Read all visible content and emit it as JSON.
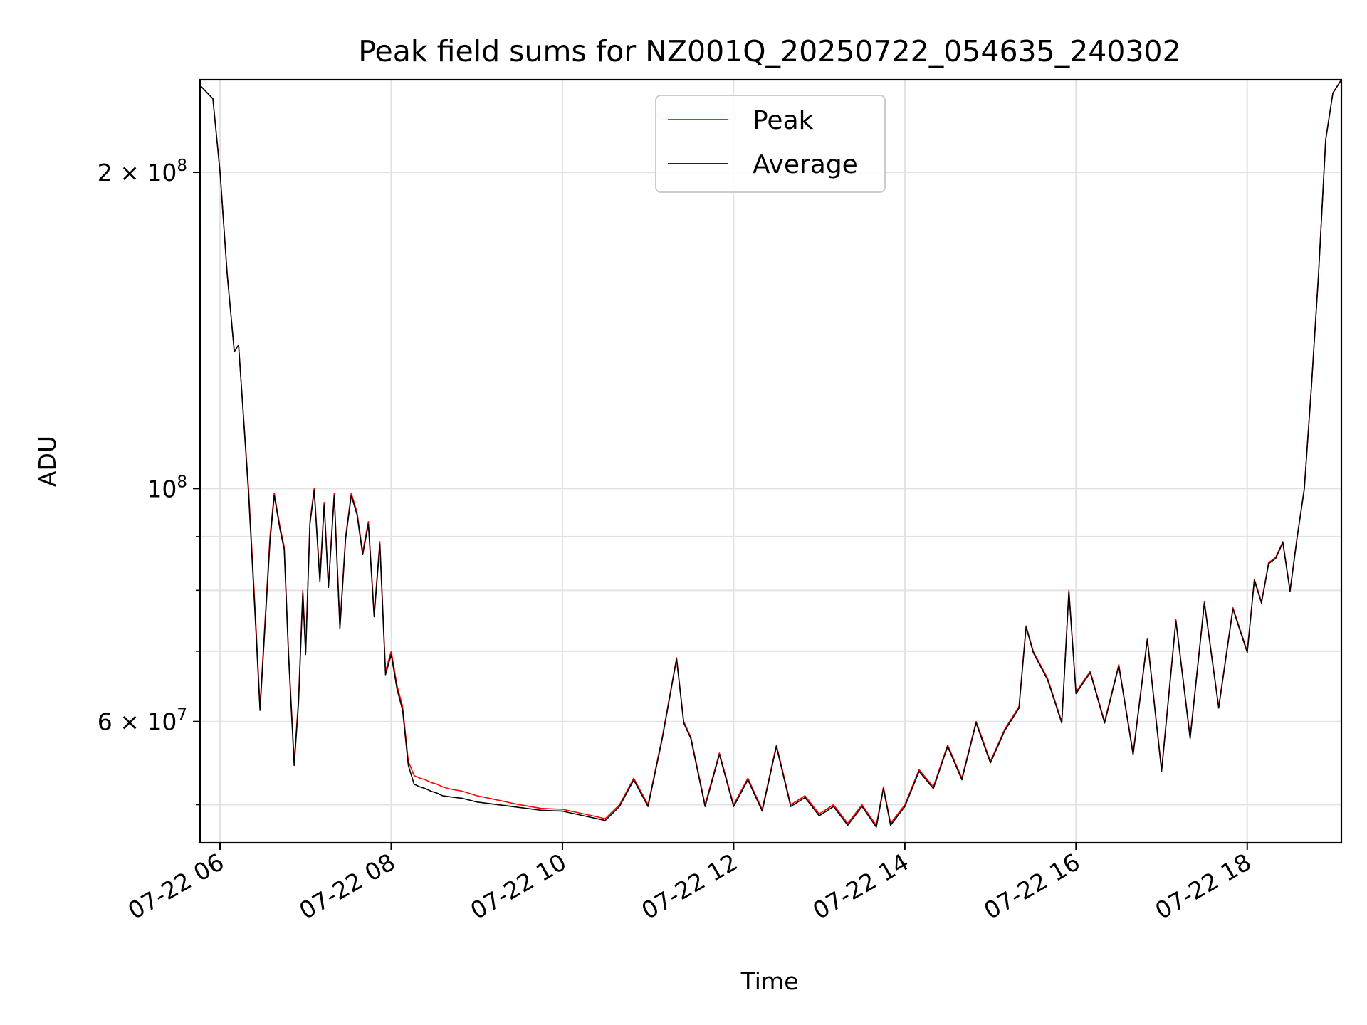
{
  "chart_data": {
    "type": "line",
    "title": "Peak field sums for NZ001Q_20250722_054635_240302",
    "xlabel": "Time",
    "ylabel": "ADU",
    "y_scale": "log",
    "ylim": [
      46000000,
      245000000
    ],
    "xlim": [
      "2025-07-22 05:46",
      "2025-07-22 19:06"
    ],
    "x_tick_labels": [
      "07-22 06",
      "07-22 08",
      "07-22 10",
      "07-22 12",
      "07-22 14",
      "07-22 16",
      "07-22 18"
    ],
    "x_ticks": [
      "2025-07-22 06:00",
      "2025-07-22 08:00",
      "2025-07-22 10:00",
      "2025-07-22 12:00",
      "2025-07-22 14:00",
      "2025-07-22 16:00",
      "2025-07-22 18:00"
    ],
    "y_tick_labels": [
      {
        "value": 200000000,
        "base": "2 × 10",
        "exp": "8"
      },
      {
        "value": 100000000,
        "base": "10",
        "exp": "8"
      },
      {
        "value": 60000000,
        "base": "6 × 10",
        "exp": "7"
      }
    ],
    "y_minor_ticks": [
      50000000,
      70000000,
      80000000,
      90000000
    ],
    "grid": true,
    "legend_position": "top-center",
    "series": [
      {
        "name": "Peak",
        "color": "#ff0000",
        "x": [
          "05:46",
          "05:55",
          "06:00",
          "06:05",
          "06:10",
          "06:13",
          "06:15",
          "06:20",
          "06:25",
          "06:28",
          "06:35",
          "06:38",
          "06:42",
          "06:45",
          "06:48",
          "06:52",
          "06:55",
          "06:58",
          "07:00",
          "07:03",
          "07:06",
          "07:10",
          "07:13",
          "07:16",
          "07:20",
          "07:24",
          "07:28",
          "07:32",
          "07:36",
          "07:40",
          "07:44",
          "07:48",
          "07:52",
          "07:56",
          "08:00",
          "08:04",
          "08:08",
          "08:12",
          "08:16",
          "08:20",
          "08:24",
          "08:28",
          "08:32",
          "08:36",
          "08:40",
          "08:50",
          "09:00",
          "09:15",
          "09:30",
          "09:45",
          "10:00",
          "10:15",
          "10:30",
          "10:40",
          "10:50",
          "11:00",
          "11:10",
          "11:20",
          "11:25",
          "11:30",
          "11:40",
          "11:50",
          "12:00",
          "12:10",
          "12:20",
          "12:30",
          "12:40",
          "12:50",
          "13:00",
          "13:10",
          "13:20",
          "13:30",
          "13:40",
          "13:45",
          "13:50",
          "14:00",
          "14:10",
          "14:20",
          "14:30",
          "14:40",
          "14:50",
          "15:00",
          "15:10",
          "15:20",
          "15:25",
          "15:30",
          "15:40",
          "15:50",
          "15:55",
          "16:00",
          "16:10",
          "16:20",
          "16:30",
          "16:40",
          "16:50",
          "17:00",
          "17:10",
          "17:20",
          "17:30",
          "17:40",
          "17:50",
          "18:00",
          "18:05",
          "18:10",
          "18:15",
          "18:20",
          "18:25",
          "18:30",
          "18:35",
          "18:40",
          "18:45",
          "18:50",
          "18:55",
          "19:00",
          "19:06"
        ],
        "y": [
          242000000,
          235000000,
          200000000,
          160000000,
          135000000,
          137000000,
          125000000,
          100000000,
          75000000,
          62000000,
          90000000,
          99000000,
          92000000,
          88000000,
          70000000,
          55000000,
          63000000,
          80000000,
          70000000,
          93000000,
          100000000,
          82000000,
          97000000,
          81000000,
          99000000,
          74000000,
          90000000,
          99000000,
          95000000,
          87000000,
          93000000,
          76000000,
          89000000,
          67000000,
          70000000,
          65000000,
          62000000,
          55000000,
          53300000,
          53000000,
          52800000,
          52500000,
          52300000,
          52000000,
          51800000,
          51500000,
          51000000,
          50500000,
          50000000,
          49600000,
          49500000,
          49000000,
          48500000,
          50000000,
          53000000,
          50000000,
          58000000,
          69000000,
          60000000,
          58000000,
          50000000,
          56000000,
          50000000,
          53000000,
          49500000,
          57000000,
          50000000,
          51000000,
          49000000,
          50000000,
          48000000,
          50000000,
          47800000,
          52000000,
          48000000,
          50000000,
          54000000,
          52000000,
          57000000,
          53000000,
          60000000,
          55000000,
          59000000,
          62000000,
          74000000,
          70000000,
          66000000,
          60000000,
          80000000,
          64000000,
          67000000,
          60000000,
          68000000,
          56000000,
          72000000,
          54000000,
          75000000,
          58000000,
          78000000,
          62000000,
          77000000,
          70000000,
          82000000,
          78000000,
          85000000,
          86000000,
          89000000,
          80000000,
          90000000,
          100000000,
          125000000,
          160000000,
          215000000,
          238000000,
          245000000
        ]
      },
      {
        "name": "Average",
        "color": "#000000",
        "x": [
          "05:46",
          "05:55",
          "06:00",
          "06:05",
          "06:10",
          "06:13",
          "06:15",
          "06:20",
          "06:25",
          "06:28",
          "06:35",
          "06:38",
          "06:42",
          "06:45",
          "06:48",
          "06:52",
          "06:55",
          "06:58",
          "07:00",
          "07:03",
          "07:06",
          "07:10",
          "07:13",
          "07:16",
          "07:20",
          "07:24",
          "07:28",
          "07:32",
          "07:36",
          "07:40",
          "07:44",
          "07:48",
          "07:52",
          "07:56",
          "08:00",
          "08:04",
          "08:08",
          "08:12",
          "08:16",
          "08:20",
          "08:24",
          "08:28",
          "08:32",
          "08:36",
          "08:40",
          "08:50",
          "09:00",
          "09:15",
          "09:30",
          "09:45",
          "10:00",
          "10:15",
          "10:30",
          "10:40",
          "10:50",
          "11:00",
          "11:10",
          "11:20",
          "11:25",
          "11:30",
          "11:40",
          "11:50",
          "12:00",
          "12:10",
          "12:20",
          "12:30",
          "12:40",
          "12:50",
          "13:00",
          "13:10",
          "13:20",
          "13:30",
          "13:40",
          "13:45",
          "13:50",
          "14:00",
          "14:10",
          "14:20",
          "14:30",
          "14:40",
          "14:50",
          "15:00",
          "15:10",
          "15:20",
          "15:25",
          "15:30",
          "15:40",
          "15:50",
          "15:55",
          "16:00",
          "16:10",
          "16:20",
          "16:30",
          "16:40",
          "16:50",
          "17:00",
          "17:10",
          "17:20",
          "17:30",
          "17:40",
          "17:50",
          "18:00",
          "18:05",
          "18:10",
          "18:15",
          "18:20",
          "18:25",
          "18:30",
          "18:35",
          "18:40",
          "18:45",
          "18:50",
          "18:55",
          "19:00",
          "19:06"
        ],
        "y": [
          242000000,
          235000000,
          200000000,
          160000000,
          135000000,
          137000000,
          125000000,
          99000000,
          74000000,
          61500000,
          89000000,
          98500000,
          91500000,
          87500000,
          69500000,
          54500000,
          62500000,
          79500000,
          69500000,
          92500000,
          99500000,
          81500000,
          96500000,
          80500000,
          98500000,
          73500000,
          89500000,
          98500000,
          94500000,
          86500000,
          92500000,
          75500000,
          88500000,
          66500000,
          69500000,
          64500000,
          61500000,
          54500000,
          52300000,
          52000000,
          51800000,
          51500000,
          51300000,
          51000000,
          50900000,
          50700000,
          50300000,
          50000000,
          49700000,
          49400000,
          49300000,
          48800000,
          48300000,
          49800000,
          52800000,
          49800000,
          57800000,
          68800000,
          59800000,
          57800000,
          49800000,
          55800000,
          49800000,
          52800000,
          49300000,
          56800000,
          49800000,
          50800000,
          48800000,
          49800000,
          47800000,
          49800000,
          47600000,
          51800000,
          47800000,
          49800000,
          53800000,
          51800000,
          56800000,
          52800000,
          59800000,
          54800000,
          58800000,
          61800000,
          73800000,
          69800000,
          65800000,
          59800000,
          79800000,
          63800000,
          66800000,
          59800000,
          67800000,
          55800000,
          71800000,
          53800000,
          74800000,
          57800000,
          77800000,
          61800000,
          76800000,
          69800000,
          81800000,
          77800000,
          84800000,
          85800000,
          88800000,
          79800000,
          89800000,
          99800000,
          124800000,
          159800000,
          214800000,
          237800000,
          245000000
        ]
      }
    ]
  }
}
